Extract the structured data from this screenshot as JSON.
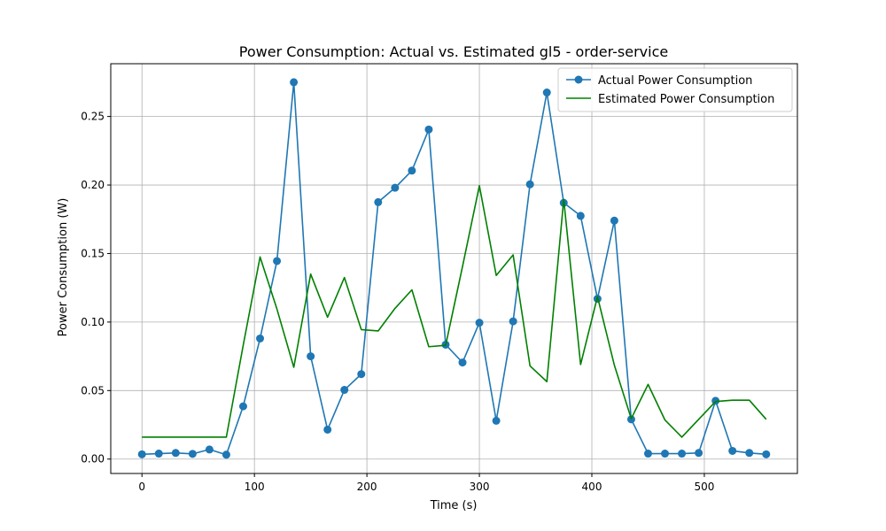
{
  "chart_data": {
    "type": "line",
    "title": "Power Consumption: Actual vs. Estimated gl5 - order-service",
    "xlabel": "Time (s)",
    "ylabel": "Power Consumption (W)",
    "xlim": [
      -27.75,
      582.75
    ],
    "ylim": [
      -0.0105,
      0.2885
    ],
    "xticks": [
      0,
      100,
      200,
      300,
      400,
      500
    ],
    "yticks": [
      0.0,
      0.05,
      0.1,
      0.15,
      0.2,
      0.25
    ],
    "ytick_labels": [
      "0.00",
      "0.05",
      "0.10",
      "0.15",
      "0.20",
      "0.25"
    ],
    "grid": true,
    "legend_position": "upper right",
    "series": [
      {
        "name": "Actual Power Consumption",
        "color": "#1f77b4",
        "marker": "circle",
        "x": [
          0,
          15,
          30,
          45,
          60,
          75,
          90,
          105,
          120,
          135,
          150,
          165,
          180,
          195,
          210,
          225,
          240,
          255,
          270,
          285,
          300,
          315,
          330,
          345,
          360,
          375,
          390,
          405,
          420,
          435,
          450,
          465,
          480,
          495,
          510,
          525,
          540,
          555
        ],
        "values": [
          0.0035,
          0.004,
          0.0045,
          0.0038,
          0.007,
          0.0032,
          0.0385,
          0.088,
          0.1445,
          0.275,
          0.075,
          0.0215,
          0.0505,
          0.062,
          0.1875,
          0.198,
          0.2105,
          0.2405,
          0.0835,
          0.0705,
          0.0995,
          0.028,
          0.1005,
          0.2005,
          0.2675,
          0.187,
          0.1775,
          0.117,
          0.174,
          0.029,
          0.004,
          0.004,
          0.004,
          0.0045,
          0.0425,
          0.006,
          0.0045,
          0.0035
        ]
      },
      {
        "name": "Estimated Power Consumption",
        "color": "#008000",
        "marker": "none",
        "x": [
          0,
          15,
          30,
          45,
          60,
          75,
          90,
          105,
          120,
          135,
          150,
          165,
          180,
          195,
          210,
          225,
          240,
          255,
          270,
          285,
          300,
          315,
          330,
          345,
          360,
          375,
          390,
          405,
          420,
          435,
          450,
          465,
          480,
          495,
          510,
          525,
          540,
          555
        ],
        "values": [
          0.016,
          0.016,
          0.016,
          0.016,
          0.016,
          0.016,
          0.083,
          0.1475,
          0.1095,
          0.067,
          0.135,
          0.1035,
          0.1325,
          0.0945,
          0.0935,
          0.11,
          0.1235,
          0.082,
          0.083,
          0.1405,
          0.1995,
          0.134,
          0.149,
          0.068,
          0.0565,
          0.1895,
          0.069,
          0.1185,
          0.0685,
          0.0295,
          0.0545,
          0.0285,
          0.016,
          0.029,
          0.042,
          0.043,
          0.043,
          0.029
        ]
      }
    ]
  }
}
